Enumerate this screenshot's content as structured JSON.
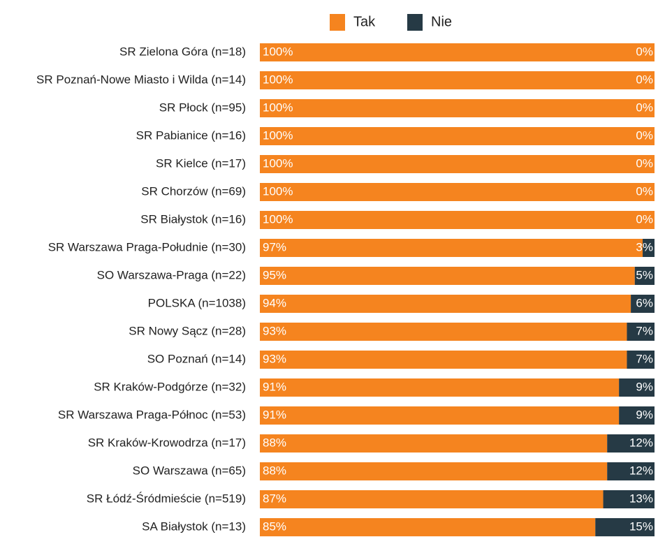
{
  "chart_data": {
    "type": "stacked-bar-horizontal",
    "categories": [
      "SR Zielona Góra (n=18)",
      "SR Poznań-Nowe Miasto i Wilda (n=14)",
      "SR Płock (n=95)",
      "SR Pabianice (n=16)",
      "SR Kielce (n=17)",
      "SR Chorzów (n=69)",
      "SR Białystok (n=16)",
      "SR Warszawa Praga-Południe (n=30)",
      "SO Warszawa-Praga (n=22)",
      "POLSKA (n=1038)",
      "SR Nowy Sącz (n=28)",
      "SO Poznań (n=14)",
      "SR Kraków-Podgórze (n=32)",
      "SR Warszawa Praga-Północ (n=53)",
      "SR Kraków-Krowodrza (n=17)",
      "SO Warszawa (n=65)",
      "SR Łódź-Śródmieście (n=519)",
      "SA Białystok (n=13)"
    ],
    "series": [
      {
        "name": "Tak",
        "color": "#f5841f",
        "values": [
          100,
          100,
          100,
          100,
          100,
          100,
          100,
          97,
          95,
          94,
          93,
          93,
          91,
          91,
          88,
          88,
          87,
          85
        ],
        "value_labels": [
          "100%",
          "100%",
          "100%",
          "100%",
          "100%",
          "100%",
          "100%",
          "97%",
          "95%",
          "94%",
          "93%",
          "93%",
          "91%",
          "91%",
          "88%",
          "88%",
          "87%",
          "85%"
        ]
      },
      {
        "name": "Nie",
        "color": "#263a45",
        "values": [
          0,
          0,
          0,
          0,
          0,
          0,
          0,
          3,
          5,
          6,
          7,
          7,
          9,
          9,
          12,
          12,
          13,
          15
        ],
        "value_labels": [
          "0%",
          "0%",
          "0%",
          "0%",
          "0%",
          "0%",
          "0%",
          "3%",
          "5%",
          "6%",
          "7%",
          "7%",
          "9%",
          "9%",
          "12%",
          "12%",
          "13%",
          "15%"
        ]
      }
    ],
    "xlim": [
      0,
      100
    ],
    "legend": "top"
  }
}
